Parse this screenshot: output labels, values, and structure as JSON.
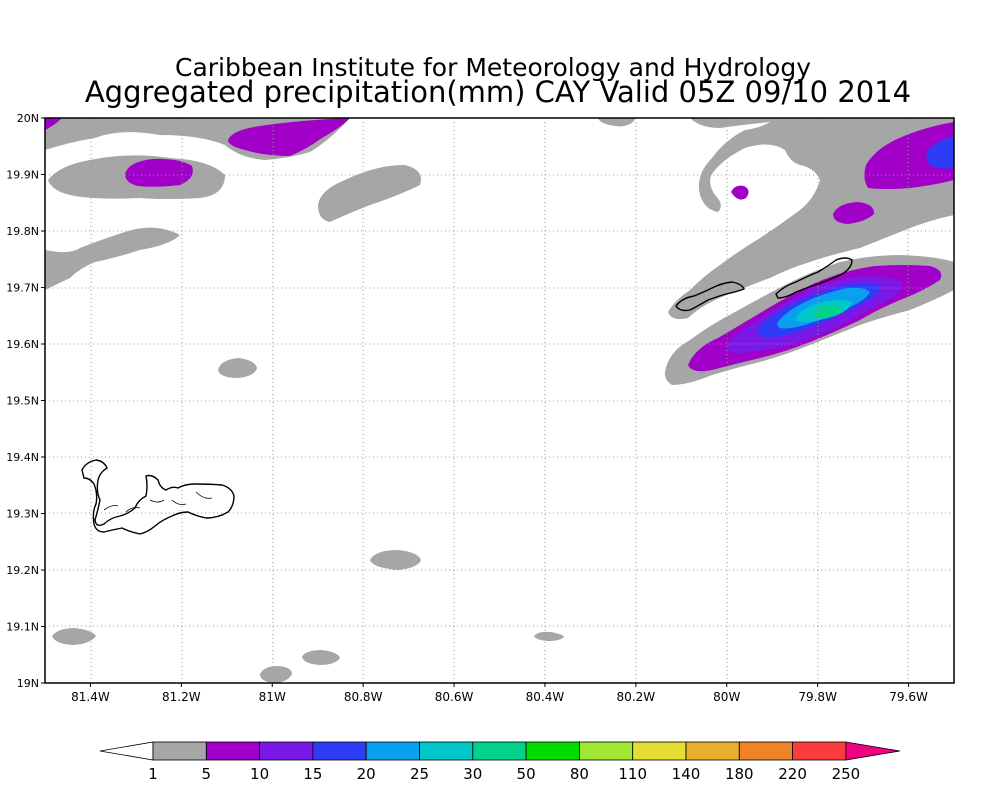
{
  "title": "Caribbean Institute for Meteorology and Hydrology",
  "subtitle": "Aggregated precipitation(mm) CAY Valid 05Z 09/10 2014",
  "map": {
    "lon_range": [
      -81.5,
      -79.5
    ],
    "lat_range": [
      19.0,
      20.0
    ],
    "x_tick_labels": [
      "81.4W",
      "81.2W",
      "81W",
      "80.8W",
      "80.6W",
      "80.4W",
      "80.2W",
      "80W",
      "79.8W",
      "79.6W"
    ],
    "x_tick_values": [
      -81.4,
      -81.2,
      -81.0,
      -80.8,
      -80.6,
      -80.4,
      -80.2,
      -80.0,
      -79.8,
      -79.6
    ],
    "y_tick_labels": [
      "19N",
      "19.1N",
      "19.2N",
      "19.3N",
      "19.4N",
      "19.5N",
      "19.6N",
      "19.7N",
      "19.8N",
      "19.9N",
      "20N"
    ],
    "y_tick_values": [
      19.0,
      19.1,
      19.2,
      19.3,
      19.4,
      19.5,
      19.6,
      19.7,
      19.8,
      19.9,
      20.0
    ],
    "grid": "dotted",
    "islands": [
      "Grand Cayman",
      "Little Cayman",
      "Cayman Brac"
    ]
  },
  "colorbar": {
    "labels": [
      "1",
      "5",
      "10",
      "15",
      "20",
      "25",
      "30",
      "50",
      "80",
      "110",
      "140",
      "180",
      "220",
      "250"
    ],
    "colors": [
      "#ffffff",
      "#a6a6a6",
      "#a000c8",
      "#7a18e6",
      "#2e3cf5",
      "#0aa0f0",
      "#00c8c8",
      "#00d28c",
      "#00dc00",
      "#a0e632",
      "#e6dc32",
      "#e6af2d",
      "#f08228",
      "#fa3c3c",
      "#f00082"
    ]
  },
  "colors": {
    "gray": "#a6a6a6",
    "purple": "#a000c8",
    "violet": "#7a18e6",
    "blue": "#2e3cf5",
    "sky": "#0aa0f0",
    "cyan": "#00c8c8",
    "teal": "#00d28c"
  }
}
